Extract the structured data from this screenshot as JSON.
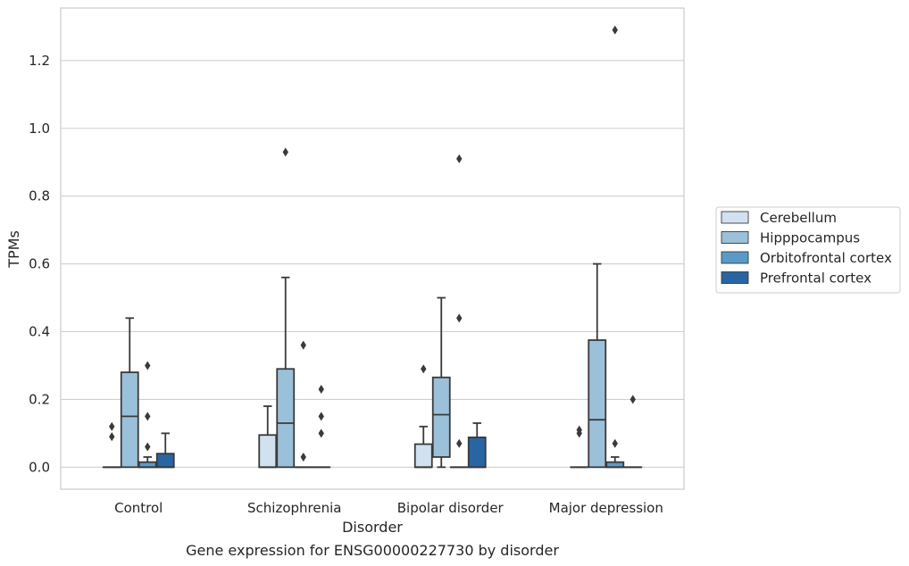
{
  "chart_data": {
    "type": "box",
    "title": "",
    "caption": "Gene expression for ENSG00000227730 by disorder",
    "xlabel": "Disorder",
    "ylabel": "TPMs",
    "categories": [
      "Control",
      "Schizophrenia",
      "Bipolar disorder",
      "Major depression"
    ],
    "ylim": [
      -0.065,
      1.355
    ],
    "yticks": [
      0.0,
      0.2,
      0.4,
      0.6,
      0.8,
      1.0,
      1.2
    ],
    "ytick_labels": [
      "0.0",
      "0.2",
      "0.4",
      "0.6",
      "0.8",
      "1.0",
      "1.2"
    ],
    "grid": true,
    "legend_position": "right",
    "series": [
      {
        "name": "Cerebellum",
        "color": "#d1e1f0",
        "boxes": [
          {
            "category": "Control",
            "whislo": 0.0,
            "q1": 0.0,
            "median": 0.0,
            "q3": 0.0,
            "whishi": 0.0,
            "fliers": [
              0.09,
              0.12
            ]
          },
          {
            "category": "Schizophrenia",
            "whislo": 0.0,
            "q1": 0.0,
            "median": 0.0,
            "q3": 0.095,
            "whishi": 0.18,
            "fliers": []
          },
          {
            "category": "Bipolar disorder",
            "whislo": 0.0,
            "q1": 0.0,
            "median": 0.0,
            "q3": 0.068,
            "whishi": 0.12,
            "fliers": [
              0.29
            ]
          },
          {
            "category": "Major depression",
            "whislo": 0.0,
            "q1": 0.0,
            "median": 0.0,
            "q3": 0.0,
            "whishi": 0.0,
            "fliers": [
              0.1,
              0.11
            ]
          }
        ]
      },
      {
        "name": "Hipppocampus",
        "color": "#9ac1d9",
        "boxes": [
          {
            "category": "Control",
            "whislo": 0.0,
            "q1": 0.0,
            "median": 0.15,
            "q3": 0.28,
            "whishi": 0.44,
            "fliers": []
          },
          {
            "category": "Schizophrenia",
            "whislo": 0.0,
            "q1": 0.0,
            "median": 0.13,
            "q3": 0.29,
            "whishi": 0.56,
            "fliers": [
              0.93
            ]
          },
          {
            "category": "Bipolar disorder",
            "whislo": 0.0,
            "q1": 0.03,
            "median": 0.155,
            "q3": 0.265,
            "whishi": 0.5,
            "fliers": []
          },
          {
            "category": "Major depression",
            "whislo": 0.0,
            "q1": 0.0,
            "median": 0.14,
            "q3": 0.375,
            "whishi": 0.6,
            "fliers": []
          }
        ]
      },
      {
        "name": "Orbitofrontal cortex",
        "color": "#5a9ac7",
        "boxes": [
          {
            "category": "Control",
            "whislo": 0.0,
            "q1": 0.0,
            "median": 0.0,
            "q3": 0.015,
            "whishi": 0.03,
            "fliers": [
              0.06,
              0.15,
              0.3
            ]
          },
          {
            "category": "Schizophrenia",
            "whislo": 0.0,
            "q1": 0.0,
            "median": 0.0,
            "q3": 0.0,
            "whishi": 0.0,
            "fliers": [
              0.03,
              0.36
            ]
          },
          {
            "category": "Bipolar disorder",
            "whislo": 0.0,
            "q1": 0.0,
            "median": 0.0,
            "q3": 0.0,
            "whishi": 0.0,
            "fliers": [
              0.07,
              0.44,
              0.91
            ]
          },
          {
            "category": "Major depression",
            "whislo": 0.0,
            "q1": 0.0,
            "median": 0.0,
            "q3": 0.015,
            "whishi": 0.03,
            "fliers": [
              0.07,
              1.29
            ]
          }
        ]
      },
      {
        "name": "Prefrontal cortex",
        "color": "#2865a3",
        "boxes": [
          {
            "category": "Control",
            "whislo": 0.0,
            "q1": 0.0,
            "median": 0.0,
            "q3": 0.04,
            "whishi": 0.1,
            "fliers": []
          },
          {
            "category": "Schizophrenia",
            "whislo": 0.0,
            "q1": 0.0,
            "median": 0.0,
            "q3": 0.0,
            "whishi": 0.0,
            "fliers": [
              0.1,
              0.15,
              0.23
            ]
          },
          {
            "category": "Bipolar disorder",
            "whislo": 0.0,
            "q1": 0.0,
            "median": 0.0,
            "q3": 0.088,
            "whishi": 0.13,
            "fliers": []
          },
          {
            "category": "Major depression",
            "whislo": 0.0,
            "q1": 0.0,
            "median": 0.0,
            "q3": 0.0,
            "whishi": 0.0,
            "fliers": [
              0.2
            ]
          }
        ]
      }
    ]
  }
}
